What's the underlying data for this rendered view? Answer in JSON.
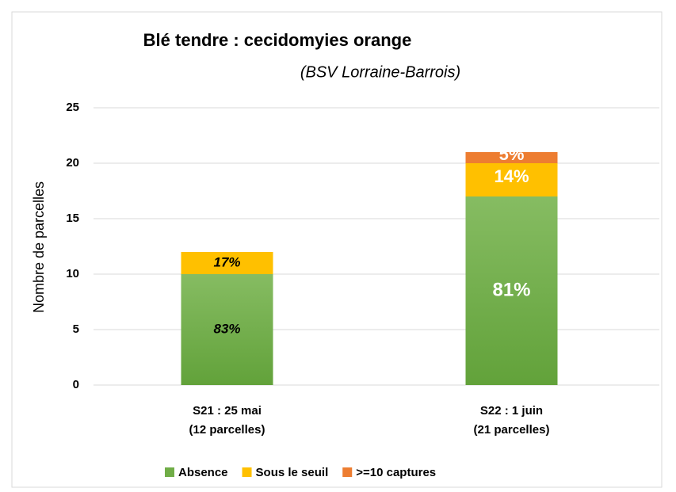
{
  "chart_data": {
    "type": "stacked_bar",
    "title": "Blé tendre : cecidomyies orange",
    "title_note": "(BSV Lorraine-Barrois)",
    "ylabel": "Nombre de parcelles",
    "categories": [
      [
        "S21 : 25 mai",
        "(12 parcelles)"
      ],
      [
        "S22 : 1 juin",
        "(21 parcelles)"
      ]
    ],
    "series": [
      {
        "name": "Absence",
        "color": "#70ad47",
        "values": [
          10,
          17
        ],
        "value_labels": [
          "83%",
          "81%"
        ]
      },
      {
        "name": "Sous le seuil",
        "color": "#ffc000",
        "values": [
          2,
          3
        ],
        "value_labels": [
          "17%",
          "14%"
        ]
      },
      {
        "name": ">=10 captures",
        "color": "#ed7d31",
        "values": [
          0,
          1
        ],
        "value_labels": [
          null,
          "5%"
        ]
      }
    ],
    "ylim": [
      0,
      25
    ],
    "yticks": [
      0,
      5,
      10,
      15,
      20,
      25
    ],
    "grid": true,
    "legend": "bottom"
  }
}
